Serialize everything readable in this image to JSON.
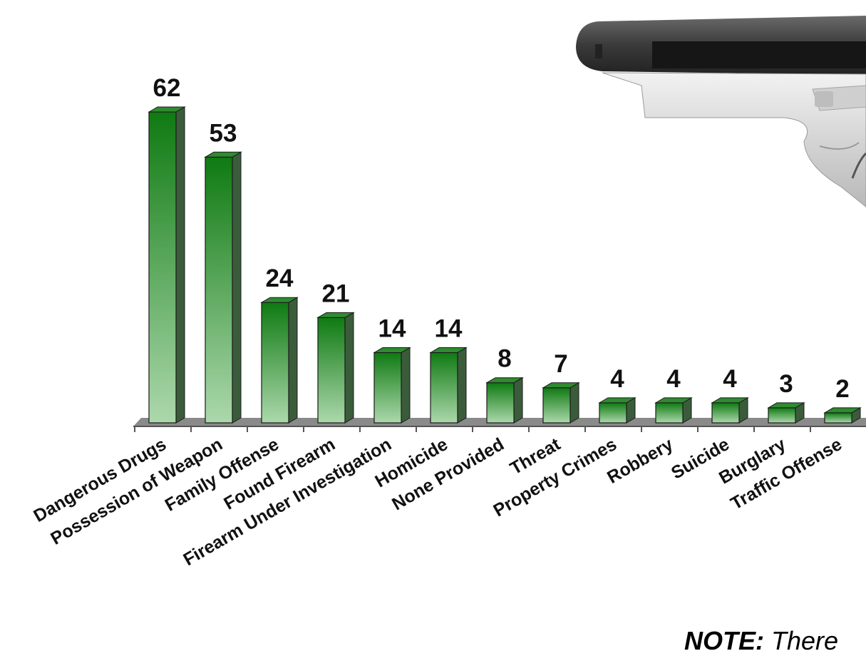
{
  "chart_data": {
    "type": "bar",
    "title": "",
    "xlabel": "",
    "ylabel": "",
    "categories": [
      "Dangerous Drugs",
      "Possession of Weapon",
      "Family Offense",
      "Found Firearm",
      "Firearm Under Investigation",
      "Homicide",
      "None Provided",
      "Threat",
      "Property Crimes",
      "Robbery",
      "Suicide",
      "Burglary",
      "Traffic Offense"
    ],
    "values": [
      62,
      53,
      24,
      21,
      14,
      14,
      8,
      7,
      4,
      4,
      4,
      3,
      2
    ],
    "data_labels": [
      "62",
      "53",
      "24",
      "21",
      "14",
      "14",
      "8",
      "7",
      "4",
      "4",
      "4",
      "3",
      "2"
    ],
    "ylim": [
      0,
      62
    ],
    "grid": false,
    "bar_style": "3d",
    "colors": {
      "bar_dark": "#0f7a12",
      "bar_light": "#acd8ac",
      "bar_side": "#3b5c3b",
      "bar_top": "#2f8a30",
      "floor": "#8a8a8a"
    }
  },
  "note": {
    "label": "NOTE:",
    "text": "There"
  },
  "decoration": {
    "image": "handgun-illustration"
  }
}
